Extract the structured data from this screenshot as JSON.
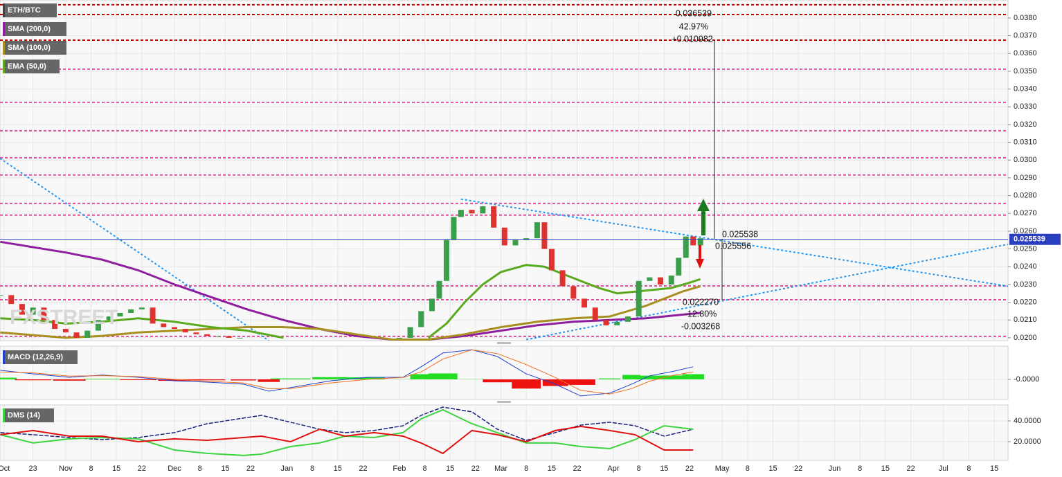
{
  "chart_data": [
    {
      "type": "candlestick",
      "title": "ETH/BTC",
      "watermark": "FXSTREET",
      "x": [
        -18,
        -15,
        -12,
        -9,
        -6,
        -3,
        0,
        3,
        6,
        9,
        12,
        15,
        18,
        21,
        24,
        27,
        30,
        33,
        36,
        39,
        42,
        45,
        48,
        51,
        92,
        95,
        98,
        101,
        103,
        105,
        107,
        109,
        112,
        115,
        118,
        121,
        124,
        127,
        130,
        132,
        134,
        137,
        140,
        143,
        146,
        149,
        152,
        155,
        158,
        161,
        164,
        167,
        169,
        171,
        173,
        175
      ],
      "values": [
        0.0224,
        0.0219,
        0.0213,
        0.0217,
        0.021,
        0.0205,
        0.0203,
        0.02,
        0.0204,
        0.021,
        0.0212,
        0.0214,
        0.0216,
        0.0217,
        0.0208,
        0.0206,
        0.0205,
        0.0203,
        0.0202,
        0.0201,
        0.0201,
        0.02,
        0.02,
        null,
        0.02,
        0.0206,
        0.0215,
        0.0222,
        0.0232,
        0.0255,
        0.0268,
        0.0272,
        0.027,
        0.0274,
        0.0262,
        0.0252,
        0.0255,
        0.0256,
        0.0265,
        0.025,
        0.0238,
        0.0229,
        0.0222,
        0.0217,
        0.021,
        0.0207,
        0.0209,
        0.0212,
        0.0232,
        0.0234,
        0.023,
        0.0235,
        0.0245,
        0.0257,
        0.0252,
        0.0256
      ],
      "up_color": "#3a9e4a",
      "down_color": "#e0322f",
      "series": [
        {
          "name": "SMA (200,0)",
          "color": "#8e1e9e",
          "x": [
            -18,
            0,
            10,
            20,
            30,
            40,
            50,
            60,
            70,
            80,
            90,
            100,
            110,
            120,
            130,
            140,
            150,
            160,
            170,
            175
          ],
          "values": [
            0.0254,
            0.0248,
            0.0244,
            0.0238,
            0.023,
            0.0223,
            0.0216,
            0.021,
            0.0205,
            0.0201,
            0.0199,
            0.0199,
            0.0201,
            0.0204,
            0.0207,
            0.0209,
            0.021,
            0.0211,
            0.0213,
            0.0214
          ]
        },
        {
          "name": "SMA (100,0)",
          "color": "#a89020",
          "x": [
            -18,
            0,
            10,
            20,
            30,
            40,
            50,
            60,
            70,
            80,
            90,
            100,
            110,
            120,
            130,
            140,
            150,
            160,
            170,
            175
          ],
          "values": [
            0.0203,
            0.02,
            0.0201,
            0.0203,
            0.0204,
            0.0205,
            0.0206,
            0.0206,
            0.0205,
            0.0202,
            0.0199,
            0.0199,
            0.0202,
            0.0206,
            0.0209,
            0.0211,
            0.0212,
            0.0218,
            0.0226,
            0.0229
          ]
        },
        {
          "name": "EMA (50,0)",
          "color": "#5aaa1e",
          "x": [
            -18,
            -9,
            0,
            10,
            20,
            30,
            40,
            50,
            60,
            70,
            100,
            105,
            110,
            115,
            120,
            127,
            132,
            137,
            142,
            147,
            152,
            157,
            162,
            167,
            172,
            175
          ],
          "values": [
            0.0211,
            0.021,
            0.0208,
            0.0209,
            0.0211,
            0.0209,
            0.0206,
            0.0204,
            0.02,
            null,
            0.02,
            0.0208,
            0.022,
            0.023,
            0.0237,
            0.0241,
            0.024,
            0.0236,
            0.0232,
            0.0228,
            0.0225,
            0.0226,
            0.0227,
            0.0228,
            0.0231,
            0.0233
          ]
        }
      ],
      "last_price": 0.025539,
      "last_price_color": "#2a3fc0",
      "levels": [
        {
          "value": 0.03874,
          "color": "#c00000"
        },
        {
          "value": 0.03819,
          "color": "#c00000"
        },
        {
          "value": 0.03675,
          "color": "#c00000"
        },
        {
          "value": 0.03512,
          "color": "#e0509a"
        },
        {
          "value": 0.03325,
          "color": "#e0509a"
        },
        {
          "value": 0.03165,
          "color": "#e0509a"
        },
        {
          "value": 0.03013,
          "color": "#e0509a"
        },
        {
          "value": 0.02916,
          "color": "#e0509a"
        },
        {
          "value": 0.02756,
          "color": "#e0509a"
        },
        {
          "value": 0.0269,
          "color": "#e0509a"
        },
        {
          "value": 0.02292,
          "color": "#e0509a"
        },
        {
          "value": 0.02214,
          "color": "#e0509a"
        },
        {
          "value": 0.02008,
          "color": "#e0509a"
        }
      ],
      "trendline_color": "#2196f3",
      "trendlines": [
        {
          "x": [
            109,
            259.8
          ],
          "values": [
            0.0278,
            0.0229
          ]
        },
        {
          "x": [
            -18.1,
            56
          ],
          "values": [
            0.0301,
            0.01984
          ]
        },
        {
          "x": [
            127,
            259.8
          ],
          "values": [
            0.0199,
            0.02526
          ]
        }
      ],
      "annotations": {
        "upper": [
          "0.036539",
          "42.97%",
          "+0.010982"
        ],
        "middle": [
          "0.025538",
          "0.025556"
        ],
        "lower": [
          "0.022270",
          "-12.80%",
          "-0.003268"
        ]
      },
      "ylim": [
        0.01984,
        0.03901
      ],
      "grid": true,
      "yticks": [
        {
          "value": 0.02,
          "label": "0.0200"
        },
        {
          "value": 0.021,
          "label": "0.0210"
        },
        {
          "value": 0.022,
          "label": "0.0220"
        },
        {
          "value": 0.023,
          "label": "0.0230"
        },
        {
          "value": 0.024,
          "label": "0.0240"
        },
        {
          "value": 0.025,
          "label": "0.0250"
        },
        {
          "value": 0.026,
          "label": "0.0260"
        },
        {
          "value": 0.027,
          "label": "0.0270"
        },
        {
          "value": 0.028,
          "label": "0.0280"
        },
        {
          "value": 0.029,
          "label": "0.0290"
        },
        {
          "value": 0.03,
          "label": "0.0300"
        },
        {
          "value": 0.031,
          "label": "0.0310"
        },
        {
          "value": 0.032,
          "label": "0.0320"
        },
        {
          "value": 0.033,
          "label": "0.0330"
        },
        {
          "value": 0.034,
          "label": "0.0340"
        },
        {
          "value": 0.035,
          "label": "0.0350"
        },
        {
          "value": 0.036,
          "label": "0.0360"
        },
        {
          "value": 0.037,
          "label": "0.0370"
        },
        {
          "value": 0.038,
          "label": "0.0380"
        }
      ]
    },
    {
      "type": "macd",
      "title": "MACD (12,26,9)",
      "x": [
        -18,
        -9,
        1,
        10,
        20,
        30,
        39,
        49,
        56,
        62,
        73,
        83,
        93,
        98,
        104,
        112,
        119,
        127,
        135,
        142,
        150,
        156,
        161,
        167,
        173
      ],
      "series": [
        {
          "color": "#2040d0",
          "values": [
            0.00049,
            0.0003,
            0.00011,
            0.00023,
            0.00011,
            -8e-05,
            -0.00015,
            -0.00026,
            -0.00064,
            -0.00045,
            -8e-05,
            0.00011,
            0.00011,
            0.00068,
            0.00143,
            0.00161,
            0.00124,
            0.0003,
            -0.00026,
            -0.0009,
            -0.00075,
            -0.00026,
            0.00019,
            0.00041,
            0.00068
          ]
        },
        {
          "color": "#f07020",
          "values": [
            0.0004,
            0.00035,
            0.00018,
            0.0002,
            0.00015,
            0,
            -0.0001,
            -0.0002,
            -0.0005,
            -0.0005,
            -0.0002,
            0,
            0.0001,
            0.0004,
            0.0011,
            0.0016,
            0.0014,
            0.0008,
            0.0001,
            -0.0006,
            -0.0008,
            -0.0005,
            -0.0001,
            0.0002,
            0.0004
          ]
        }
      ],
      "histogram": {
        "up_color": "#22dd22",
        "down_color": "#ee1111",
        "values": [
          9e-05,
          -5e-05,
          -7e-05,
          3e-05,
          -4e-05,
          -8e-05,
          -5e-05,
          -6e-05,
          -0.00014,
          5e-05,
          0.00012,
          0.00011,
          1e-05,
          0.00028,
          0.00032,
          1e-05,
          -0.00016,
          -0.0005,
          -0.00036,
          -0.0003,
          5e-05,
          0.00024,
          0.0002,
          0.00021,
          0.00028
        ]
      },
      "ylim": [
        -0.00109,
        0.0018
      ],
      "yticks": [
        {
          "value": 0,
          "label": "-0.0000"
        }
      ]
    },
    {
      "type": "dms",
      "title": "DMS (14)",
      "x": [
        -18,
        -9,
        1,
        10,
        20,
        30,
        39,
        49,
        54,
        62,
        70,
        77,
        85,
        93,
        98,
        104,
        112,
        119,
        127,
        135,
        142,
        150,
        157,
        165,
        173
      ],
      "series": [
        {
          "color": "#1a237e",
          "values": [
            28.7,
            26.7,
            24,
            22,
            24,
            28.7,
            37.3,
            42.7,
            45.3,
            38.7,
            32,
            28.7,
            30.7,
            35.3,
            45.3,
            53.3,
            48.7,
            32,
            21.3,
            28.7,
            36,
            38.7,
            35.3,
            25.3,
            32
          ]
        },
        {
          "color": "#3ed33e",
          "values": [
            26.7,
            18.7,
            22.7,
            24,
            22.7,
            12,
            8.7,
            6.7,
            8,
            15.3,
            18.7,
            25.3,
            24,
            28.7,
            42,
            50.7,
            37.3,
            28.7,
            18.7,
            18.7,
            15.3,
            13.3,
            22,
            35.3,
            32
          ]
        },
        {
          "color": "#e01010",
          "values": [
            26.7,
            30.7,
            25.3,
            25.3,
            20,
            22.7,
            21.3,
            24,
            25.3,
            20,
            32,
            25.3,
            28.7,
            25.3,
            18.7,
            8.7,
            30.7,
            26.7,
            20,
            30.7,
            34.7,
            30.7,
            26.7,
            12,
            12
          ]
        }
      ],
      "ylim": [
        2,
        55.3
      ],
      "yticks": [
        {
          "value": 40,
          "label": "40.0000"
        },
        {
          "value": 20,
          "label": "20.0000"
        }
      ],
      "xlim": [
        -18.1,
        259.8
      ],
      "xticks": [
        {
          "value": -17,
          "label": "Oct"
        },
        {
          "value": -9,
          "label": "23"
        },
        {
          "value": 0,
          "label": "Nov"
        },
        {
          "value": 7,
          "label": "8"
        },
        {
          "value": 14,
          "label": "15"
        },
        {
          "value": 21,
          "label": "22"
        },
        {
          "value": 30,
          "label": "Dec"
        },
        {
          "value": 37,
          "label": "8"
        },
        {
          "value": 44,
          "label": "15"
        },
        {
          "value": 51,
          "label": "22"
        },
        {
          "value": 61,
          "label": "Jan"
        },
        {
          "value": 68,
          "label": "8"
        },
        {
          "value": 75,
          "label": "15"
        },
        {
          "value": 82,
          "label": "22"
        },
        {
          "value": 92,
          "label": "Feb"
        },
        {
          "value": 99,
          "label": "8"
        },
        {
          "value": 106,
          "label": "15"
        },
        {
          "value": 113,
          "label": "22"
        },
        {
          "value": 120,
          "label": "Mar"
        },
        {
          "value": 127,
          "label": "8"
        },
        {
          "value": 134,
          "label": "15"
        },
        {
          "value": 141,
          "label": "22"
        },
        {
          "value": 151,
          "label": "Apr"
        },
        {
          "value": 158,
          "label": "8"
        },
        {
          "value": 165,
          "label": "15"
        },
        {
          "value": 172,
          "label": "22"
        },
        {
          "value": 181,
          "label": "May"
        },
        {
          "value": 188,
          "label": "8"
        },
        {
          "value": 195,
          "label": "15"
        },
        {
          "value": 202,
          "label": "22"
        },
        {
          "value": 212,
          "label": "Jun"
        },
        {
          "value": 219,
          "label": "8"
        },
        {
          "value": 226,
          "label": "15"
        },
        {
          "value": 233,
          "label": "22"
        },
        {
          "value": 242,
          "label": "Jul"
        },
        {
          "value": 249,
          "label": "8"
        },
        {
          "value": 256,
          "label": "15"
        }
      ]
    }
  ]
}
